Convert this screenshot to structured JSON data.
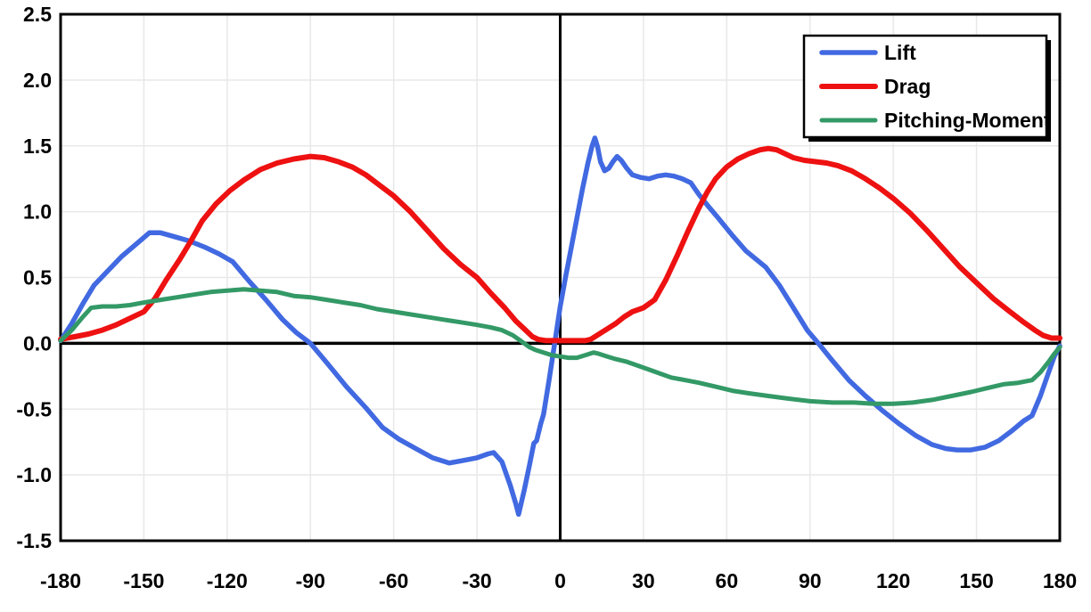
{
  "chart_data": {
    "type": "line",
    "title": "",
    "xlabel": "",
    "ylabel": "",
    "xlim": [
      -180,
      180
    ],
    "ylim": [
      -1.5,
      2.5
    ],
    "xticks": [
      -180,
      -150,
      -120,
      -90,
      -60,
      -30,
      0,
      30,
      60,
      90,
      120,
      150,
      180
    ],
    "yticks": [
      -1.5,
      -1.0,
      -0.5,
      0.0,
      0.5,
      1.0,
      1.5,
      2.0,
      2.5
    ],
    "grid": true,
    "zero_axes": true,
    "legend_position": "top-right",
    "colors": {
      "frame": "#000000",
      "grid": "#e8e8e8",
      "background": "#ffffff",
      "legend_shadow": "#000000"
    },
    "series": [
      {
        "name": "Lift",
        "color": "#4169E1",
        "width": 5.5,
        "points": [
          [
            -180,
            0.02
          ],
          [
            -176,
            0.15
          ],
          [
            -172,
            0.3
          ],
          [
            -168,
            0.44
          ],
          [
            -163,
            0.55
          ],
          [
            -158,
            0.66
          ],
          [
            -153,
            0.75
          ],
          [
            -148,
            0.84
          ],
          [
            -144,
            0.84
          ],
          [
            -139,
            0.81
          ],
          [
            -134,
            0.78
          ],
          [
            -128,
            0.73
          ],
          [
            -123,
            0.68
          ],
          [
            -118,
            0.62
          ],
          [
            -112,
            0.47
          ],
          [
            -106,
            0.33
          ],
          [
            -100,
            0.18
          ],
          [
            -95,
            0.08
          ],
          [
            -90,
            0.0
          ],
          [
            -84,
            -0.15
          ],
          [
            -77,
            -0.33
          ],
          [
            -70,
            -0.49
          ],
          [
            -64,
            -0.64
          ],
          [
            -58,
            -0.73
          ],
          [
            -52,
            -0.8
          ],
          [
            -46,
            -0.87
          ],
          [
            -40,
            -0.91
          ],
          [
            -35,
            -0.89
          ],
          [
            -30,
            -0.87
          ],
          [
            -26,
            -0.84
          ],
          [
            -24,
            -0.83
          ],
          [
            -21,
            -0.9
          ],
          [
            -18,
            -1.08
          ],
          [
            -16,
            -1.22
          ],
          [
            -15,
            -1.3
          ],
          [
            -13,
            -1.12
          ],
          [
            -11,
            -0.92
          ],
          [
            -9.5,
            -0.76
          ],
          [
            -8.5,
            -0.74
          ],
          [
            -7,
            -0.61
          ],
          [
            -6,
            -0.54
          ],
          [
            -4,
            -0.28
          ],
          [
            -2,
            0.0
          ],
          [
            0,
            0.28
          ],
          [
            2,
            0.51
          ],
          [
            4,
            0.73
          ],
          [
            6,
            0.95
          ],
          [
            8,
            1.17
          ],
          [
            10,
            1.37
          ],
          [
            11.5,
            1.5
          ],
          [
            12.5,
            1.56
          ],
          [
            13.5,
            1.49
          ],
          [
            14.5,
            1.38
          ],
          [
            16,
            1.31
          ],
          [
            17.5,
            1.33
          ],
          [
            19,
            1.38
          ],
          [
            20.5,
            1.42
          ],
          [
            22,
            1.39
          ],
          [
            24,
            1.33
          ],
          [
            26,
            1.28
          ],
          [
            29,
            1.26
          ],
          [
            32,
            1.25
          ],
          [
            35,
            1.27
          ],
          [
            38,
            1.28
          ],
          [
            41,
            1.27
          ],
          [
            44,
            1.25
          ],
          [
            47,
            1.22
          ],
          [
            50,
            1.13
          ],
          [
            53,
            1.05
          ],
          [
            57,
            0.95
          ],
          [
            62,
            0.82
          ],
          [
            67,
            0.7
          ],
          [
            74,
            0.58
          ],
          [
            79,
            0.44
          ],
          [
            84,
            0.27
          ],
          [
            89,
            0.1
          ],
          [
            93,
            0.0
          ],
          [
            98,
            -0.13
          ],
          [
            104,
            -0.28
          ],
          [
            110,
            -0.4
          ],
          [
            116,
            -0.51
          ],
          [
            122,
            -0.61
          ],
          [
            128,
            -0.7
          ],
          [
            134,
            -0.77
          ],
          [
            139,
            -0.8
          ],
          [
            143,
            -0.81
          ],
          [
            148,
            -0.81
          ],
          [
            153,
            -0.79
          ],
          [
            158,
            -0.74
          ],
          [
            163,
            -0.66
          ],
          [
            167,
            -0.59
          ],
          [
            170,
            -0.55
          ],
          [
            173,
            -0.4
          ],
          [
            176,
            -0.22
          ],
          [
            178,
            -0.1
          ],
          [
            180,
            -0.02
          ]
        ]
      },
      {
        "name": "Drag",
        "color": "#EE1111",
        "width": 6,
        "points": [
          [
            -180,
            0.03
          ],
          [
            -175,
            0.05
          ],
          [
            -170,
            0.07
          ],
          [
            -165,
            0.1
          ],
          [
            -160,
            0.14
          ],
          [
            -155,
            0.19
          ],
          [
            -150,
            0.24
          ],
          [
            -146,
            0.34
          ],
          [
            -142,
            0.48
          ],
          [
            -137,
            0.64
          ],
          [
            -133,
            0.78
          ],
          [
            -129,
            0.93
          ],
          [
            -124,
            1.06
          ],
          [
            -119,
            1.16
          ],
          [
            -114,
            1.24
          ],
          [
            -108,
            1.32
          ],
          [
            -102,
            1.37
          ],
          [
            -96,
            1.4
          ],
          [
            -90,
            1.42
          ],
          [
            -85,
            1.41
          ],
          [
            -80,
            1.38
          ],
          [
            -75,
            1.34
          ],
          [
            -70,
            1.28
          ],
          [
            -65,
            1.2
          ],
          [
            -60,
            1.12
          ],
          [
            -54,
            1.0
          ],
          [
            -48,
            0.86
          ],
          [
            -42,
            0.72
          ],
          [
            -36,
            0.6
          ],
          [
            -30,
            0.5
          ],
          [
            -25,
            0.38
          ],
          [
            -20,
            0.27
          ],
          [
            -16,
            0.17
          ],
          [
            -13,
            0.11
          ],
          [
            -10,
            0.05
          ],
          [
            -8,
            0.03
          ],
          [
            -5,
            0.02
          ],
          [
            0,
            0.02
          ],
          [
            5,
            0.02
          ],
          [
            9,
            0.02
          ],
          [
            11,
            0.03
          ],
          [
            14,
            0.07
          ],
          [
            17,
            0.11
          ],
          [
            20,
            0.15
          ],
          [
            23,
            0.2
          ],
          [
            26,
            0.24
          ],
          [
            30,
            0.27
          ],
          [
            34,
            0.33
          ],
          [
            38,
            0.48
          ],
          [
            42,
            0.66
          ],
          [
            46,
            0.85
          ],
          [
            50,
            1.03
          ],
          [
            53,
            1.15
          ],
          [
            56,
            1.25
          ],
          [
            60,
            1.34
          ],
          [
            64,
            1.4
          ],
          [
            68,
            1.44
          ],
          [
            72,
            1.47
          ],
          [
            75,
            1.48
          ],
          [
            78,
            1.47
          ],
          [
            81,
            1.44
          ],
          [
            84,
            1.41
          ],
          [
            88,
            1.39
          ],
          [
            92,
            1.38
          ],
          [
            96,
            1.37
          ],
          [
            100,
            1.35
          ],
          [
            105,
            1.31
          ],
          [
            110,
            1.25
          ],
          [
            115,
            1.18
          ],
          [
            120,
            1.1
          ],
          [
            126,
            0.99
          ],
          [
            132,
            0.86
          ],
          [
            138,
            0.72
          ],
          [
            144,
            0.58
          ],
          [
            150,
            0.46
          ],
          [
            156,
            0.34
          ],
          [
            162,
            0.24
          ],
          [
            167,
            0.16
          ],
          [
            171,
            0.1
          ],
          [
            174,
            0.06
          ],
          [
            177,
            0.04
          ],
          [
            180,
            0.04
          ]
        ]
      },
      {
        "name": "Pitching-Moment",
        "color": "#339966",
        "width": 5,
        "points": [
          [
            -180,
            0.02
          ],
          [
            -176,
            0.1
          ],
          [
            -172,
            0.2
          ],
          [
            -169,
            0.27
          ],
          [
            -165,
            0.28
          ],
          [
            -160,
            0.28
          ],
          [
            -155,
            0.29
          ],
          [
            -150,
            0.31
          ],
          [
            -144,
            0.33
          ],
          [
            -138,
            0.35
          ],
          [
            -132,
            0.37
          ],
          [
            -126,
            0.39
          ],
          [
            -120,
            0.4
          ],
          [
            -114,
            0.41
          ],
          [
            -108,
            0.4
          ],
          [
            -102,
            0.39
          ],
          [
            -96,
            0.36
          ],
          [
            -90,
            0.35
          ],
          [
            -84,
            0.33
          ],
          [
            -78,
            0.31
          ],
          [
            -72,
            0.29
          ],
          [
            -66,
            0.26
          ],
          [
            -60,
            0.24
          ],
          [
            -54,
            0.22
          ],
          [
            -48,
            0.2
          ],
          [
            -42,
            0.18
          ],
          [
            -36,
            0.16
          ],
          [
            -30,
            0.14
          ],
          [
            -25,
            0.12
          ],
          [
            -21,
            0.1
          ],
          [
            -17,
            0.06
          ],
          [
            -15,
            0.03
          ],
          [
            -13,
            0.0
          ],
          [
            -11,
            -0.03
          ],
          [
            -9,
            -0.05
          ],
          [
            -6,
            -0.07
          ],
          [
            -3,
            -0.09
          ],
          [
            0,
            -0.1
          ],
          [
            3,
            -0.11
          ],
          [
            6,
            -0.11
          ],
          [
            9,
            -0.09
          ],
          [
            12,
            -0.07
          ],
          [
            14,
            -0.08
          ],
          [
            17,
            -0.1
          ],
          [
            20,
            -0.12
          ],
          [
            24,
            -0.14
          ],
          [
            28,
            -0.17
          ],
          [
            32,
            -0.2
          ],
          [
            36,
            -0.23
          ],
          [
            40,
            -0.26
          ],
          [
            45,
            -0.28
          ],
          [
            50,
            -0.3
          ],
          [
            56,
            -0.33
          ],
          [
            62,
            -0.36
          ],
          [
            68,
            -0.38
          ],
          [
            75,
            -0.4
          ],
          [
            82,
            -0.42
          ],
          [
            90,
            -0.44
          ],
          [
            98,
            -0.45
          ],
          [
            106,
            -0.45
          ],
          [
            113,
            -0.46
          ],
          [
            120,
            -0.46
          ],
          [
            127,
            -0.45
          ],
          [
            134,
            -0.43
          ],
          [
            141,
            -0.4
          ],
          [
            148,
            -0.37
          ],
          [
            154,
            -0.34
          ],
          [
            160,
            -0.31
          ],
          [
            165,
            -0.3
          ],
          [
            170,
            -0.28
          ],
          [
            173,
            -0.22
          ],
          [
            176,
            -0.14
          ],
          [
            178,
            -0.08
          ],
          [
            180,
            -0.03
          ]
        ]
      }
    ]
  }
}
